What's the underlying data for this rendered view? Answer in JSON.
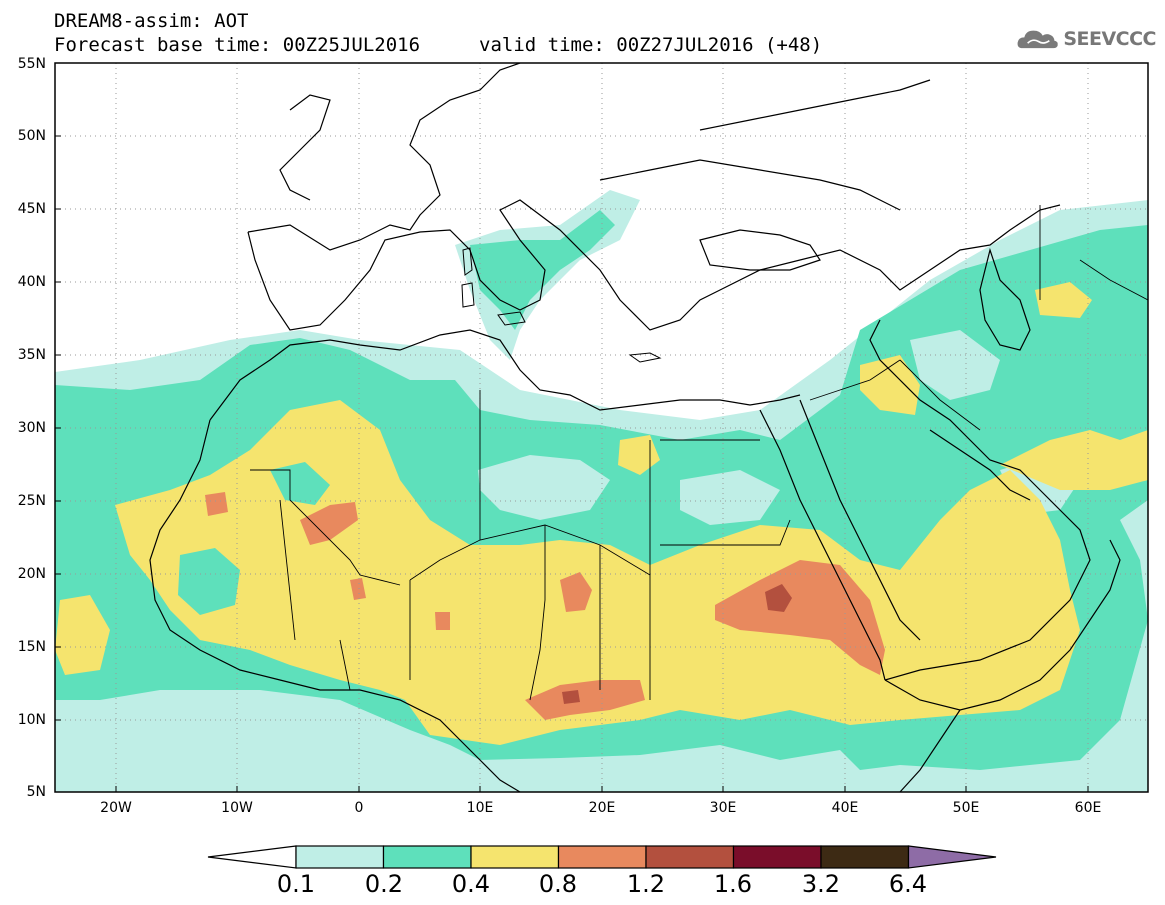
{
  "header": {
    "title_line1": "DREAM8-assim: AOT",
    "title_line2": "Forecast base time: 00Z25JUL2016",
    "valid_time": "valid time: 00Z27JUL2016 (+48)",
    "logo_text": "SEEVCCC",
    "logo_icon": "cloud-icon"
  },
  "map": {
    "lat_labels": [
      "55N",
      "50N",
      "45N",
      "40N",
      "35N",
      "30N",
      "25N",
      "20N",
      "15N",
      "10N",
      "5N"
    ],
    "lon_labels": [
      "20W",
      "10W",
      "0",
      "10E",
      "20E",
      "30E",
      "40E",
      "50E",
      "60E"
    ],
    "lat_range": [
      5,
      55
    ],
    "lon_range": [
      -25,
      65
    ],
    "gridlines": "dotted"
  },
  "colorbar": {
    "labels": [
      "0.1",
      "0.2",
      "0.4",
      "0.8",
      "1.2",
      "1.6",
      "3.2",
      "6.4"
    ],
    "colors": [
      "#ffffff",
      "#bfeee6",
      "#5ee0bb",
      "#f5e46e",
      "#e8895e",
      "#b3503e",
      "#7a0d2a",
      "#3d2a14",
      "#8e6ca6"
    ]
  }
}
